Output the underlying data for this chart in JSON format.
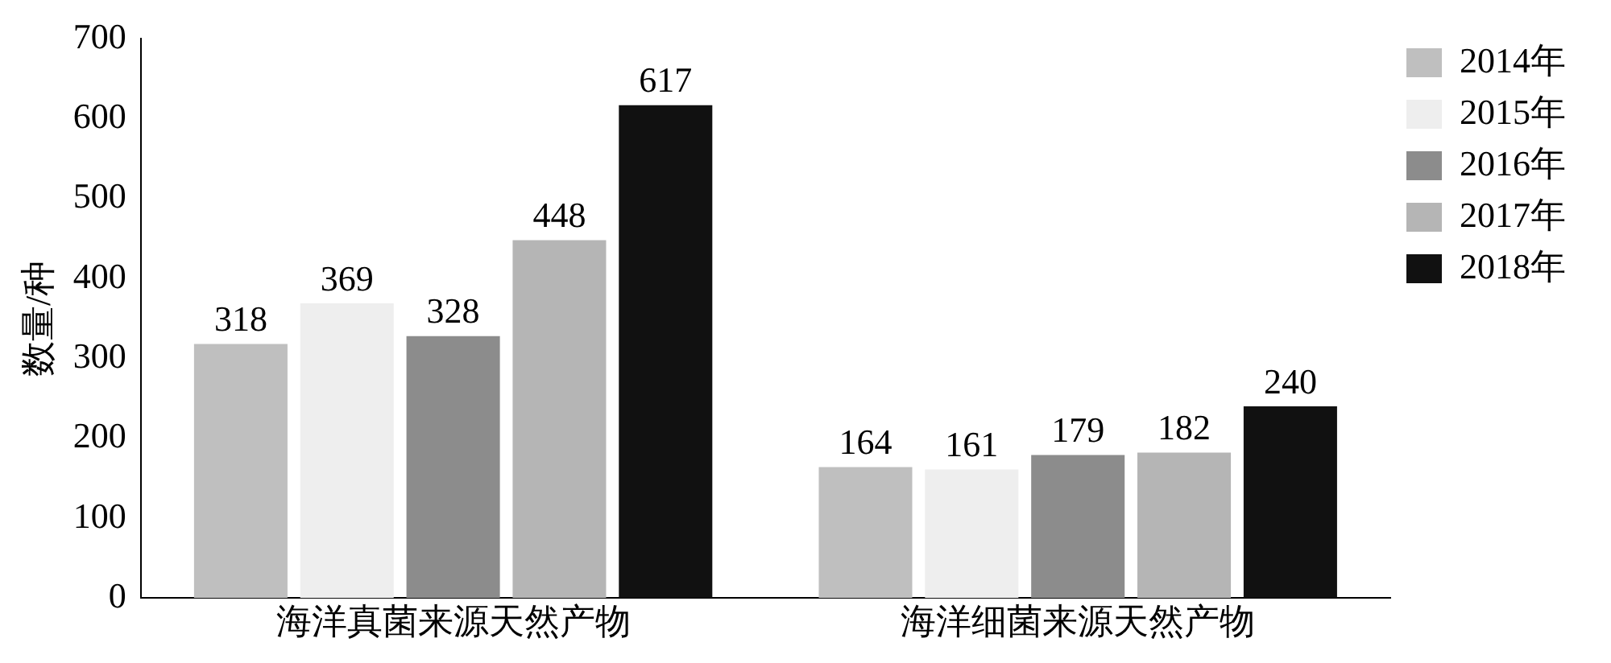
{
  "chart_data": {
    "type": "bar",
    "ylabel": "数量/种",
    "categories": [
      "海洋真菌来源天然产物",
      "海洋细菌来源天然产物"
    ],
    "series": [
      {
        "name": "2014年",
        "color": "#bfbfbf",
        "values": [
          318,
          164
        ]
      },
      {
        "name": "2015年",
        "color": "#eeeeee",
        "values": [
          369,
          161
        ]
      },
      {
        "name": "2016年",
        "color": "#8c8c8c",
        "values": [
          328,
          179
        ]
      },
      {
        "name": "2017年",
        "color": "#b5b5b5",
        "values": [
          448,
          182
        ]
      },
      {
        "name": "2018年",
        "color": "#111111",
        "values": [
          617,
          240
        ]
      }
    ],
    "ylim": [
      0,
      700
    ],
    "yticks": [
      0,
      100,
      200,
      300,
      400,
      500,
      600,
      700
    ],
    "grid": false,
    "legend": "top right",
    "data_labels": true
  }
}
